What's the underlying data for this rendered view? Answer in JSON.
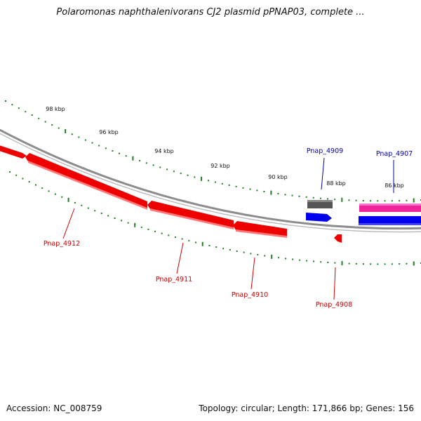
{
  "title": "Polaromonas naphthalenivorans CJ2 plasmid pPNAP03, complete ...",
  "footer": {
    "accession": "Accession: NC_008759",
    "summary": "Topology: circular; Length: 171,866 bp; Genes: 156"
  },
  "colors": {
    "backbone": "#8c8c8c",
    "tick": "#1f7f1f",
    "reverse_gene": "#ee0000",
    "forward_gene": "#0000ee",
    "label_reverse": "#cc0000",
    "label_forward": "#0000aa",
    "grey_feature": "#555555",
    "pink_feature": "#ee2299"
  },
  "scale_labels": [
    "98 kbp",
    "96 kbp",
    "94 kbp",
    "92 kbp",
    "90 kbp",
    "88 kbp",
    "86 kbp"
  ],
  "genes": [
    {
      "name": "Pnap_4912",
      "strand": "reverse"
    },
    {
      "name": "Pnap_4911",
      "strand": "reverse"
    },
    {
      "name": "Pnap_4910",
      "strand": "reverse"
    },
    {
      "name": "Pnap_4908",
      "strand": "reverse"
    },
    {
      "name": "Pnap_4909",
      "strand": "forward"
    },
    {
      "name": "Pnap_4907",
      "strand": "forward"
    }
  ]
}
